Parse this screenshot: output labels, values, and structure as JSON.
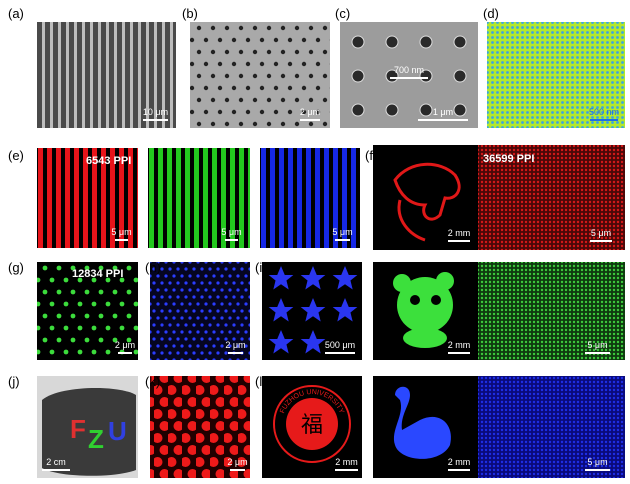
{
  "labels": [
    "(a)",
    "(b)",
    "(c)",
    "(d)",
    "(e)",
    "(f)",
    "(g)",
    "(h)",
    "(i)",
    "(j)",
    "(k)",
    "(l)"
  ],
  "scale_bars": [
    "10 μm",
    "2 μm",
    "700 nm",
    "1 μm",
    "500 nm",
    "5 μm",
    "5 μm",
    "5 μm",
    "2 mm",
    "5 μm",
    "2 μm",
    "2 μm",
    "500 μm",
    "2 mm",
    "5 μm",
    "2 cm",
    "2 μm",
    "2 mm",
    "2 mm",
    "5 μm"
  ],
  "annotations": [
    "6543 PPI",
    "36599 PPI",
    "12834 PPI"
  ],
  "bracelet_letters": [
    "F",
    "Z",
    "U"
  ],
  "emblem": {
    "ring": "FUZHOU UNIVERSITY",
    "center": "福"
  }
}
